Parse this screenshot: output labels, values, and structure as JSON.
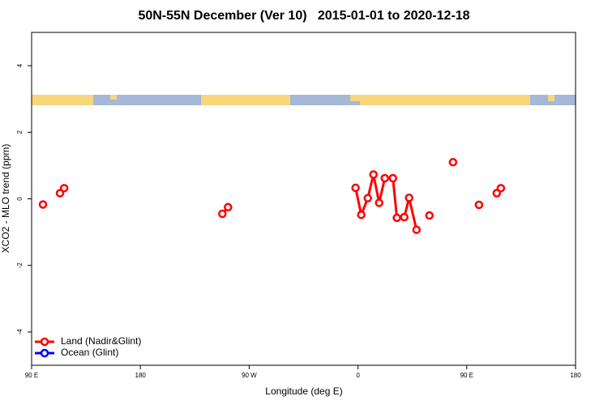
{
  "chart_data": {
    "type": "line",
    "title": "50N-55N December (Ver 10)   2015-01-01 to 2020-12-18",
    "x_label": "Longitude (deg E)",
    "y_label": "XCO2 - MLO trend (ppm)",
    "xlim": [
      90,
      540
    ],
    "xticks": [
      {
        "value": 90,
        "label": "90 E"
      },
      180,
      {
        "value": 270,
        "label": "90 W"
      },
      {
        "value": 360,
        "label": "0"
      },
      {
        "value": 450,
        "label": "90 E"
      },
      {
        "value": 540,
        "label": "180"
      }
    ],
    "ylim": [
      -5,
      5
    ],
    "yticks": [
      -4,
      -2,
      0,
      2,
      4
    ],
    "legend": "bottom-left",
    "series": [
      {
        "name": "Land (Nadir&Glint)",
        "color": "#ff0000",
        "x": [
          99.4,
          null,
          113.5,
          116.9,
          null,
          247.8,
          252.5,
          null,
          358.0,
          362.7,
          368.1,
          372.8,
          377.5,
          382.2,
          388.9,
          392.2,
          398.3,
          402.3,
          408.4,
          null,
          419.1,
          null,
          438.6,
          null,
          460.1,
          null,
          474.8,
          478.2
        ],
        "values": [
          -0.17,
          null,
          0.17,
          0.32,
          null,
          -0.45,
          -0.25,
          null,
          0.33,
          -0.48,
          0.02,
          0.73,
          -0.12,
          0.62,
          0.62,
          -0.57,
          -0.55,
          0.03,
          -0.93,
          null,
          -0.5,
          null,
          1.1,
          null,
          -0.18,
          null,
          0.17,
          0.32
        ]
      },
      {
        "name": "Ocean (Glint)",
        "color": "#0000ff",
        "x": [],
        "values": []
      }
    ]
  }
}
